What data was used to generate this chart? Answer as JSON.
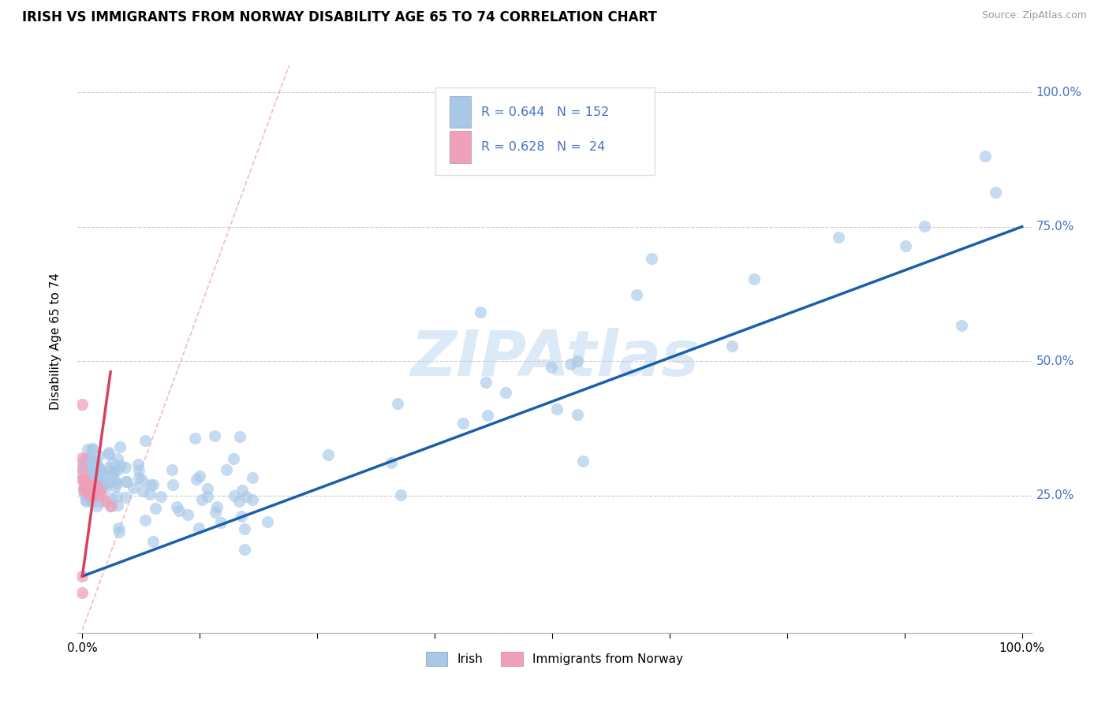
{
  "title": "IRISH VS IMMIGRANTS FROM NORWAY DISABILITY AGE 65 TO 74 CORRELATION CHART",
  "source": "Source: ZipAtlas.com",
  "ylabel": "Disability Age 65 to 74",
  "ytick_labels": [
    "25.0%",
    "50.0%",
    "75.0%",
    "100.0%"
  ],
  "ytick_values": [
    0.25,
    0.5,
    0.75,
    1.0
  ],
  "legend_irish": "Irish",
  "legend_norway": "Immigrants from Norway",
  "R_irish": 0.644,
  "N_irish": 152,
  "R_norway": 0.628,
  "N_norway": 24,
  "blue_color": "#a8c8e8",
  "blue_line_color": "#1a5faa",
  "pink_color": "#f0a0b8",
  "pink_line_color": "#d84060",
  "text_color": "#4472c4",
  "watermark_color": "#c0d8f0",
  "blue_trendline_x": [
    0.0,
    1.0
  ],
  "blue_trendline_y": [
    0.1,
    0.75
  ],
  "pink_trendline_x": [
    0.0,
    0.03
  ],
  "pink_trendline_y": [
    0.1,
    0.48
  ],
  "ref_line_x": [
    0.0,
    0.22
  ],
  "ref_line_y": [
    0.0,
    1.05
  ],
  "xmin": 0.0,
  "xmax": 1.0,
  "ymin": 0.0,
  "ymax": 1.05
}
